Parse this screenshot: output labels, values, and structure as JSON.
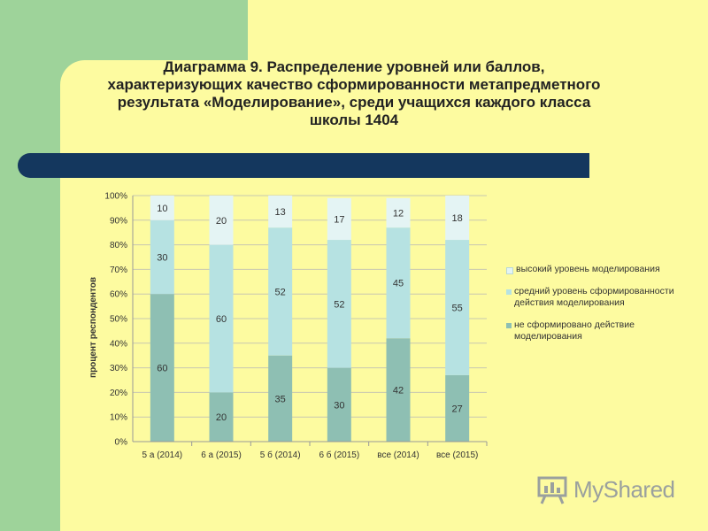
{
  "title_lines": [
    "Диаграмма 9. Распределение уровней или баллов,",
    "характеризующих качество сформированности метапредметного",
    "результата «Моделирование», среди учащихся каждого класса",
    "школы 1404"
  ],
  "chart_data": {
    "type": "bar",
    "stacked": true,
    "percent": true,
    "categories": [
      "5 а (2014)",
      "6 а (2015)",
      "5 б (2014)",
      "6 б (2015)",
      "все (2014)",
      "все (2015)"
    ],
    "series": [
      {
        "name": "не сформировано действие моделирования",
        "values": [
          60,
          20,
          35,
          30,
          42,
          27
        ],
        "color": "#8ebfb3"
      },
      {
        "name": "средний уровень сформированности действия моделирования",
        "values": [
          30,
          60,
          52,
          52,
          45,
          55
        ],
        "color": "#b6e2e2"
      },
      {
        "name": "высокий уровень моделирования",
        "values": [
          10,
          20,
          13,
          17,
          12,
          18
        ],
        "color": "#e4f4f4"
      }
    ],
    "ylabel": "процент респондентов",
    "yticks": [
      "0%",
      "10%",
      "20%",
      "30%",
      "40%",
      "50%",
      "60%",
      "70%",
      "80%",
      "90%",
      "100%"
    ],
    "ylim": [
      0,
      100
    ],
    "grid": true,
    "legend_position": "right"
  },
  "logo": {
    "text": "MyShared"
  }
}
